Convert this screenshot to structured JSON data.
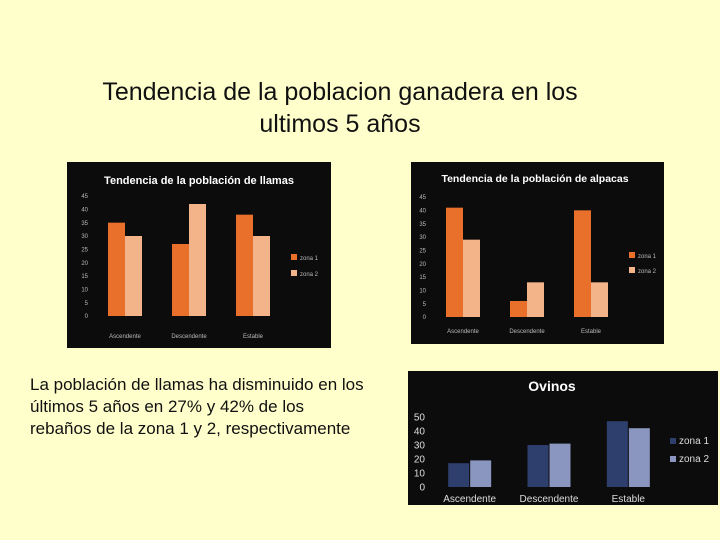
{
  "slide": {
    "title_line1": "Tendencia de la poblacion ganadera en los",
    "title_line2": "ultimos 5 años",
    "caption": "La población de llamas ha disminuido en los últimos 5 años en 27%  y  42% de los rebaños de la zona 1 y 2, respectivamente"
  },
  "chart_data": [
    {
      "type": "bar",
      "title": "Tendencia de la población de llamas",
      "categories": [
        "Ascendente",
        "Descendente",
        "Estable"
      ],
      "series": [
        {
          "name": "zona 1",
          "values": [
            35,
            27,
            38
          ]
        },
        {
          "name": "zona 2",
          "values": [
            30,
            42,
            30
          ]
        }
      ],
      "ylim": [
        0,
        45
      ],
      "yticks": [
        0,
        5,
        10,
        15,
        20,
        25,
        30,
        35,
        40,
        45
      ],
      "colors": [
        "#e8702a",
        "#f4b48a"
      ],
      "legend": "right",
      "grid": false
    },
    {
      "type": "bar",
      "title": "Tendencia de la población de alpacas",
      "categories": [
        "Ascendente",
        "Descendente",
        "Estable"
      ],
      "series": [
        {
          "name": "zona 1",
          "values": [
            41,
            6,
            40
          ]
        },
        {
          "name": "zona 2",
          "values": [
            29,
            13,
            13
          ]
        }
      ],
      "ylim": [
        0,
        45
      ],
      "yticks": [
        0,
        5,
        10,
        15,
        20,
        25,
        30,
        35,
        40,
        45
      ],
      "colors": [
        "#e8702a",
        "#f4b48a"
      ],
      "legend": "right",
      "grid": false
    },
    {
      "type": "bar",
      "title": "Ovinos",
      "categories": [
        "Ascendente",
        "Descendente",
        "Estable"
      ],
      "series": [
        {
          "name": "zona 1",
          "values": [
            17,
            30,
            47
          ]
        },
        {
          "name": "zona 2",
          "values": [
            19,
            31,
            42
          ]
        }
      ],
      "ylim": [
        0,
        50
      ],
      "yticks": [
        0,
        10,
        20,
        30,
        40,
        50
      ],
      "colors": [
        "#2e3f6e",
        "#8a96bf"
      ],
      "legend": "right",
      "grid": false
    }
  ]
}
